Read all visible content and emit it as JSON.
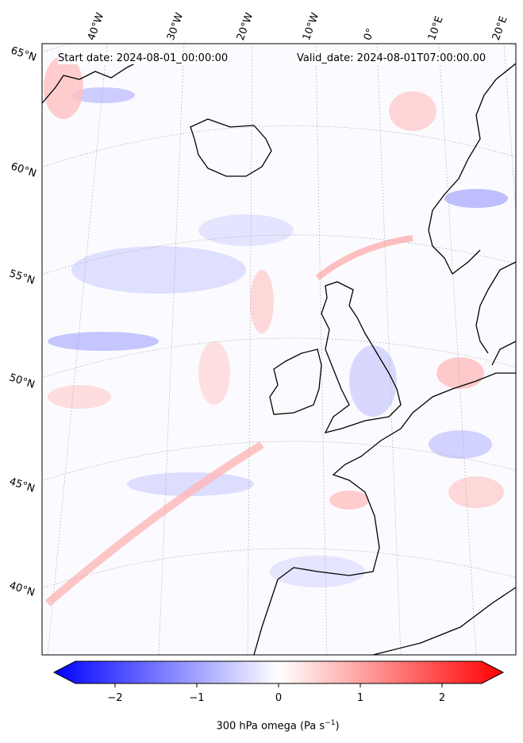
{
  "header": {
    "start_date": "Start date: 2024-08-01_00:00:00",
    "valid_date": "Valid_date: 2024-08-01T07:00:00.00"
  },
  "longitude_labels": [
    "40°W",
    "30°W",
    "20°W",
    "10°W",
    "0°",
    "10°E",
    "20°E"
  ],
  "latitude_labels": [
    "65°N",
    "60°N",
    "55°N",
    "50°N",
    "45°N",
    "40°N"
  ],
  "colorbar": {
    "ticks": [
      "−2",
      "−1",
      "0",
      "1",
      "2"
    ],
    "label_main": "300 hPa omega (Pa s",
    "label_exp": "−1",
    "label_end": ")",
    "min_color": "#0000ff",
    "mid_color": "#ffffff",
    "max_color": "#ff0000"
  },
  "map": {
    "land_outline_color": "#000000",
    "gridline_color": "#aaaaaa"
  }
}
